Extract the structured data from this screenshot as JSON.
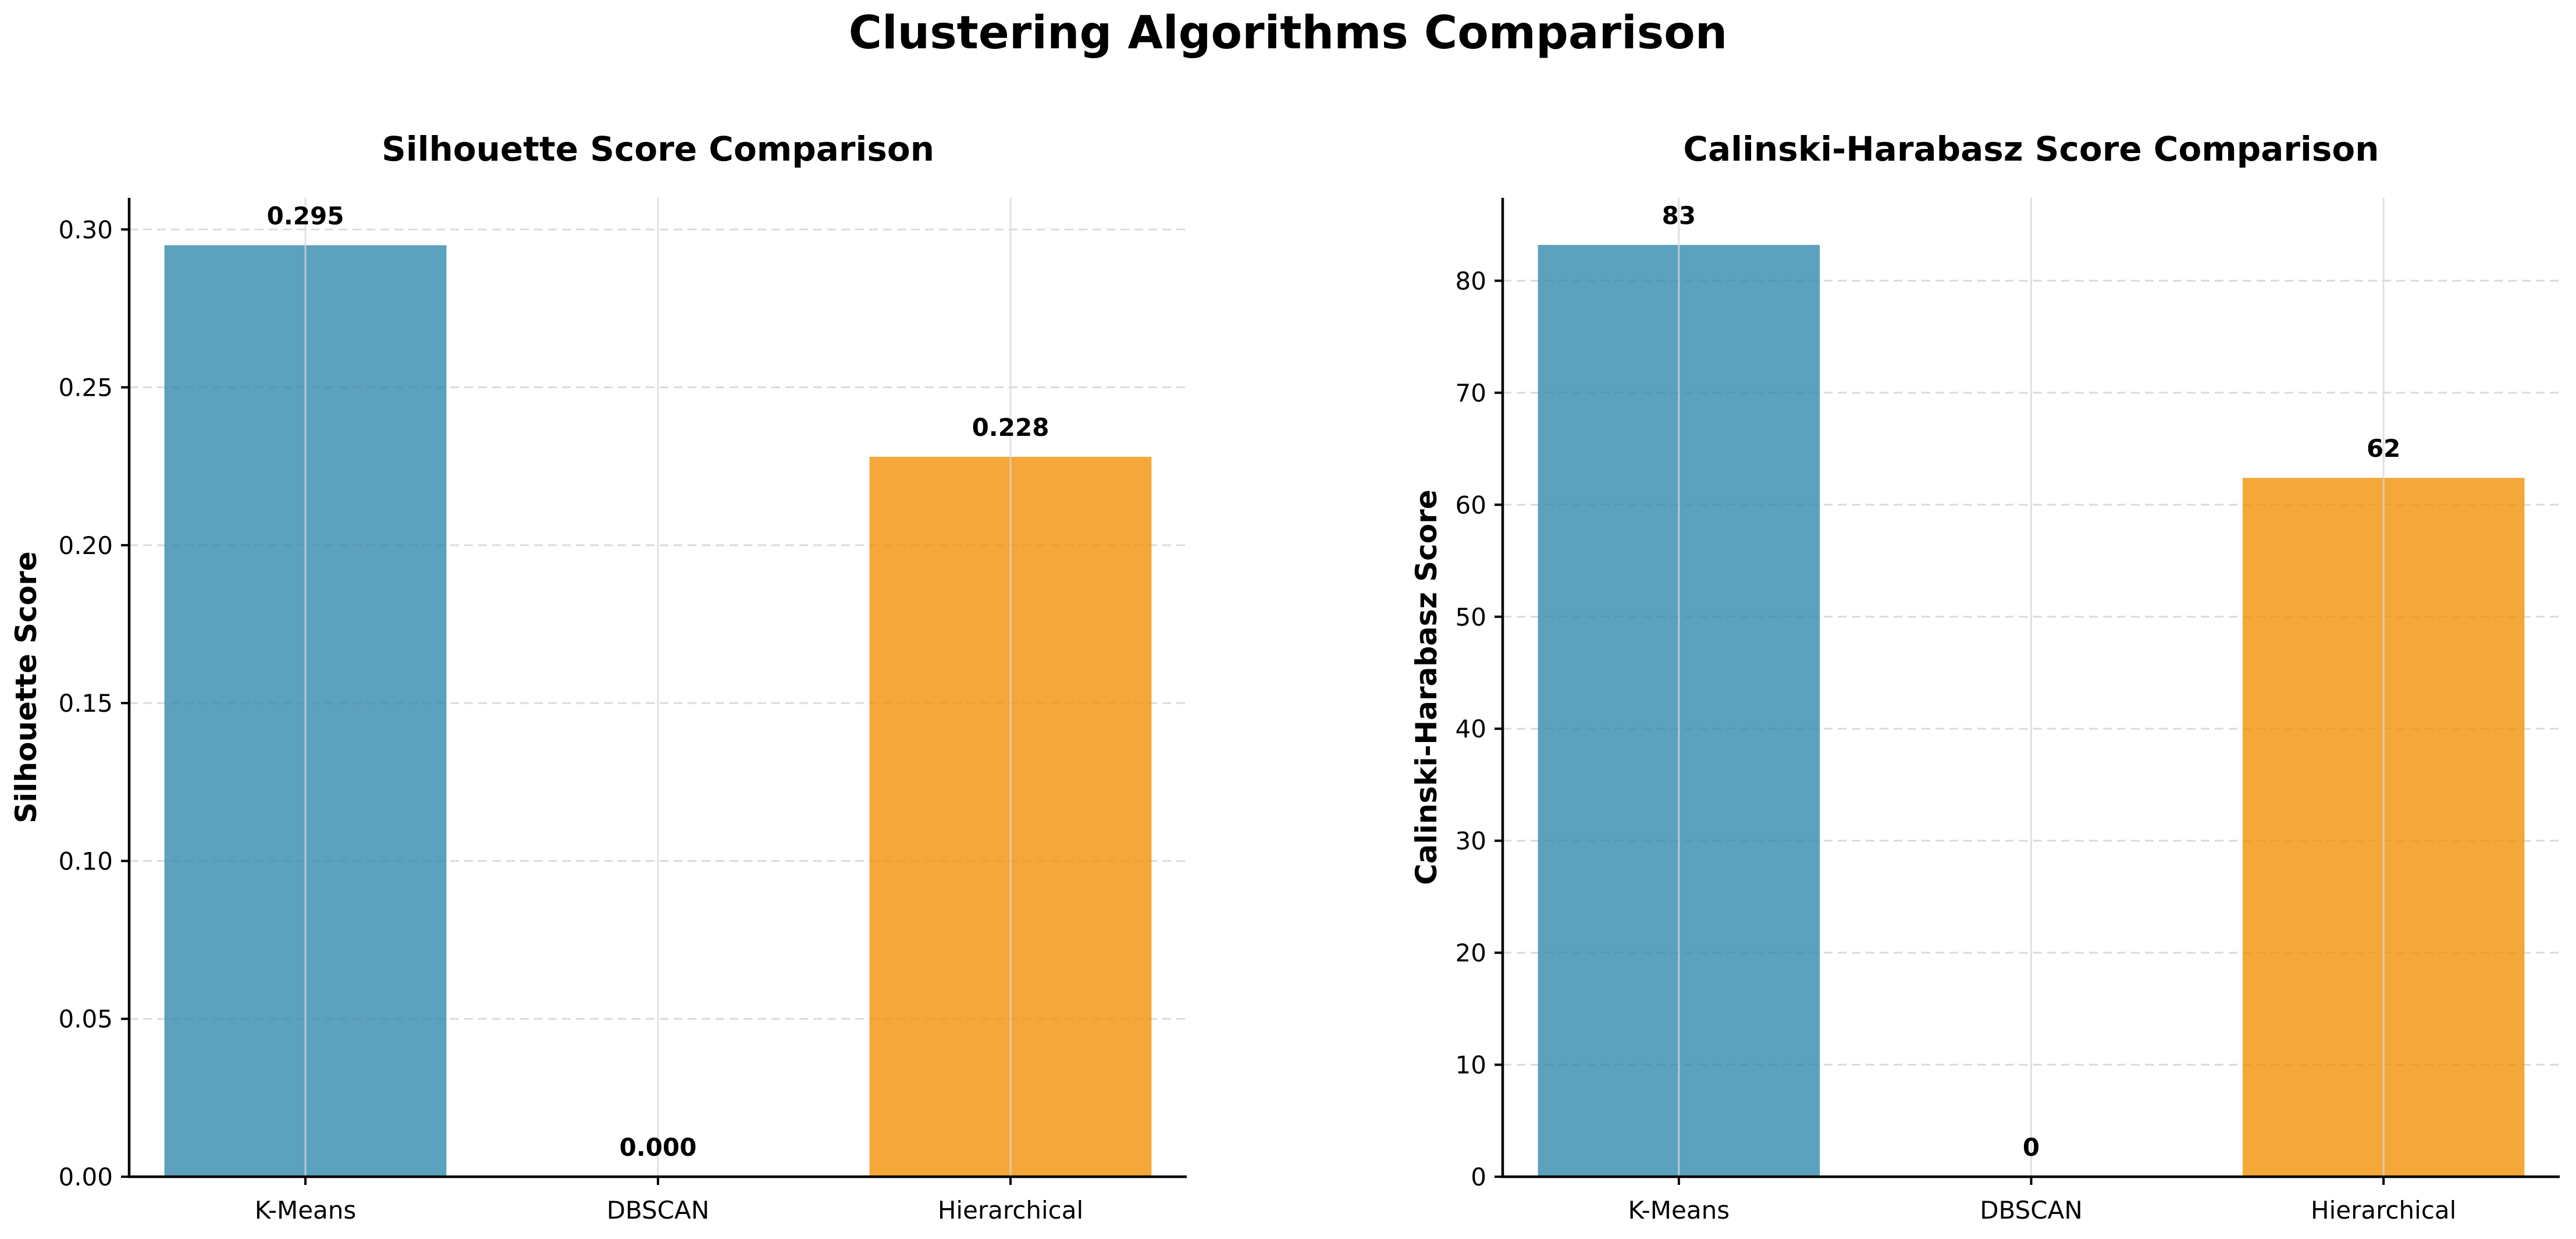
{
  "figure": {
    "title": "Clustering Algorithms Comparison"
  },
  "chart_data": [
    {
      "type": "bar",
      "title": "Silhouette Score Comparison",
      "xlabel": "",
      "ylabel": "Silhouette Score",
      "categories": [
        "K-Means",
        "DBSCAN",
        "Hierarchical"
      ],
      "values": [
        0.295,
        0.0,
        0.228
      ],
      "value_labels": [
        "0.295",
        "0.000",
        "0.228"
      ],
      "bar_colors": [
        "#2E86AB",
        "#2E86AB",
        "#F18F01"
      ],
      "ylim": [
        0,
        0.31
      ],
      "yticks": [
        0.0,
        0.05,
        0.1,
        0.15,
        0.2,
        0.25,
        0.3
      ],
      "ytick_labels": [
        "0.00",
        "0.05",
        "0.10",
        "0.15",
        "0.20",
        "0.25",
        "0.30"
      ],
      "grid": true
    },
    {
      "type": "bar",
      "title": "Calinski-Harabasz Score Comparison",
      "xlabel": "",
      "ylabel": "Calinski-Harabasz Score",
      "categories": [
        "K-Means",
        "DBSCAN",
        "Hierarchical"
      ],
      "values": [
        83.2,
        0.0,
        62.4
      ],
      "value_labels": [
        "83",
        "0",
        "62"
      ],
      "bar_colors": [
        "#2E86AB",
        "#2E86AB",
        "#F18F01"
      ],
      "ylim": [
        0,
        87.4
      ],
      "yticks": [
        0,
        10,
        20,
        30,
        40,
        50,
        60,
        70,
        80
      ],
      "ytick_labels": [
        "0",
        "10",
        "20",
        "30",
        "40",
        "50",
        "60",
        "70",
        "80"
      ],
      "grid": true
    }
  ]
}
